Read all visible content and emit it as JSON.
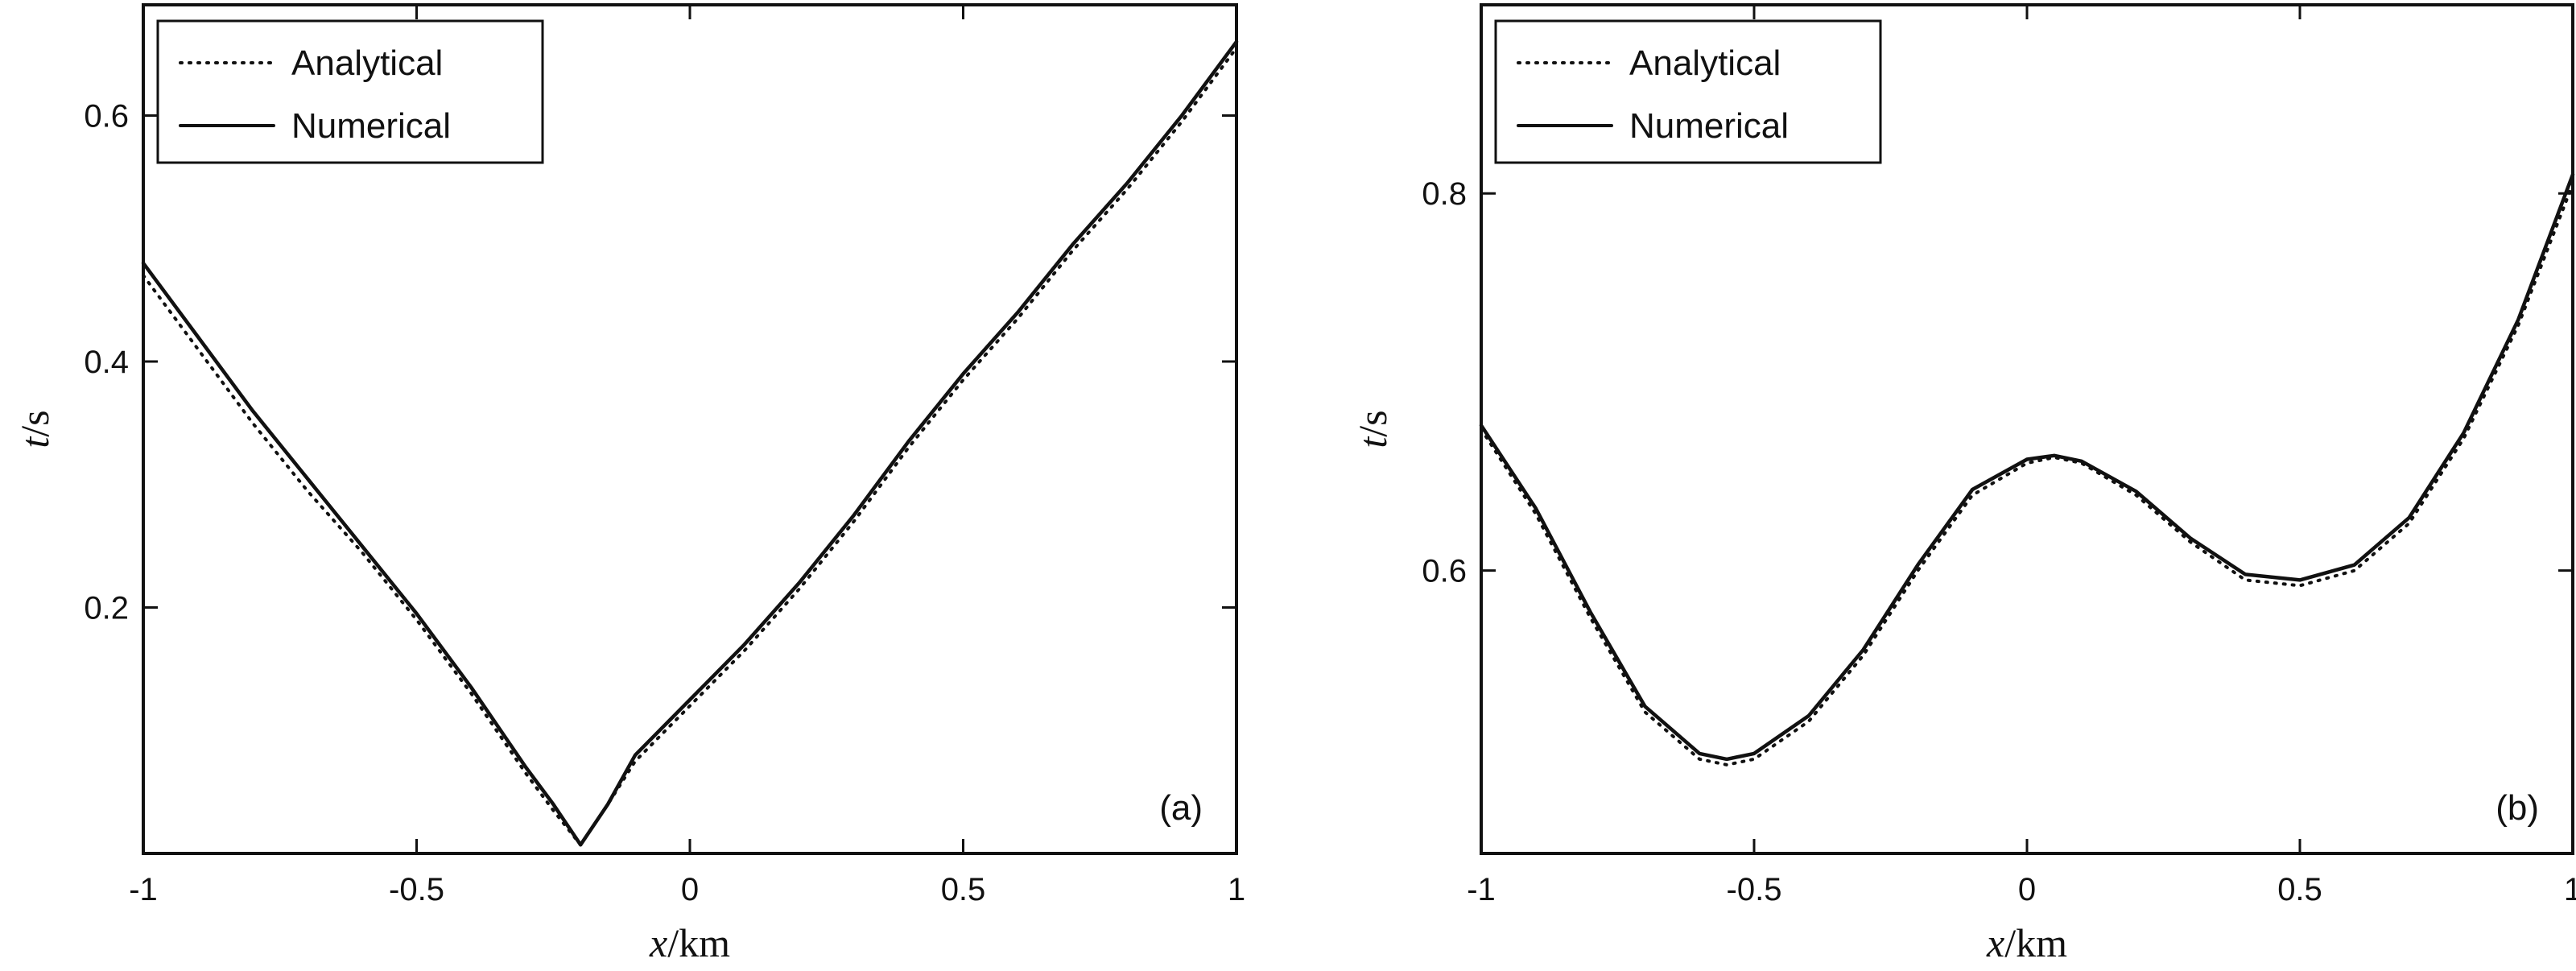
{
  "chart_data": [
    {
      "type": "line",
      "panel_label": "(a)",
      "xlabel_var": "x",
      "xlabel_unit": "/km",
      "ylabel_var": "t",
      "ylabel_unit": "/s",
      "xlim": [
        -1,
        1
      ],
      "ylim": [
        0.0,
        0.69
      ],
      "xticks": [
        -1,
        -0.5,
        0,
        0.5,
        1
      ],
      "xtick_labels": [
        "-1",
        "-0.5",
        "0",
        "0.5",
        "1"
      ],
      "yticks": [
        0.2,
        0.4,
        0.6
      ],
      "ytick_labels": [
        "0.2",
        "0.4",
        "0.6"
      ],
      "grid": false,
      "legend_position": "top-left",
      "series": [
        {
          "name": "Analytical",
          "style": "dotted",
          "x": [
            -1.0,
            -0.9,
            -0.8,
            -0.7,
            -0.6,
            -0.5,
            -0.4,
            -0.3,
            -0.25,
            -0.2,
            -0.15,
            -0.1,
            0.0,
            0.1,
            0.2,
            0.3,
            0.4,
            0.5,
            0.6,
            0.7,
            0.8,
            0.9,
            1.0
          ],
          "values": [
            0.47,
            0.41,
            0.35,
            0.295,
            0.245,
            0.19,
            0.13,
            0.065,
            0.035,
            0.007,
            0.04,
            0.075,
            0.12,
            0.165,
            0.215,
            0.27,
            0.33,
            0.385,
            0.435,
            0.49,
            0.54,
            0.595,
            0.655
          ]
        },
        {
          "name": "Numerical",
          "style": "solid",
          "x": [
            -1.0,
            -0.9,
            -0.8,
            -0.7,
            -0.6,
            -0.5,
            -0.4,
            -0.3,
            -0.25,
            -0.2,
            -0.15,
            -0.1,
            0.0,
            0.1,
            0.2,
            0.3,
            0.4,
            0.5,
            0.6,
            0.7,
            0.8,
            0.9,
            1.0
          ],
          "values": [
            0.48,
            0.42,
            0.36,
            0.305,
            0.25,
            0.195,
            0.135,
            0.07,
            0.04,
            0.007,
            0.04,
            0.08,
            0.125,
            0.17,
            0.22,
            0.275,
            0.335,
            0.39,
            0.44,
            0.495,
            0.545,
            0.6,
            0.66
          ]
        }
      ]
    },
    {
      "type": "line",
      "panel_label": "(b)",
      "xlabel_var": "x",
      "xlabel_unit": "/km",
      "ylabel_var": "t",
      "ylabel_unit": "/s",
      "xlim": [
        -1,
        1
      ],
      "ylim": [
        0.45,
        0.9
      ],
      "xticks": [
        -1,
        -0.5,
        0,
        0.5,
        1
      ],
      "xtick_labels": [
        "-1",
        "-0.5",
        "0",
        "0.5",
        "1"
      ],
      "yticks": [
        0.6,
        0.8
      ],
      "ytick_labels": [
        "0.6",
        "0.8"
      ],
      "grid": false,
      "legend_position": "top-left",
      "series": [
        {
          "name": "Analytical",
          "style": "dotted",
          "x": [
            -1.0,
            -0.9,
            -0.8,
            -0.7,
            -0.6,
            -0.55,
            -0.5,
            -0.4,
            -0.3,
            -0.2,
            -0.1,
            0.0,
            0.05,
            0.1,
            0.2,
            0.3,
            0.4,
            0.5,
            0.6,
            0.7,
            0.8,
            0.9,
            1.0
          ],
          "values": [
            0.675,
            0.63,
            0.575,
            0.525,
            0.5,
            0.497,
            0.5,
            0.52,
            0.555,
            0.6,
            0.64,
            0.657,
            0.66,
            0.657,
            0.64,
            0.615,
            0.595,
            0.592,
            0.6,
            0.625,
            0.67,
            0.73,
            0.805
          ]
        },
        {
          "name": "Numerical",
          "style": "solid",
          "x": [
            -1.0,
            -0.9,
            -0.8,
            -0.7,
            -0.6,
            -0.55,
            -0.5,
            -0.4,
            -0.3,
            -0.2,
            -0.1,
            0.0,
            0.05,
            0.1,
            0.2,
            0.3,
            0.4,
            0.5,
            0.6,
            0.7,
            0.8,
            0.9,
            1.0
          ],
          "values": [
            0.677,
            0.633,
            0.578,
            0.528,
            0.503,
            0.5,
            0.503,
            0.523,
            0.558,
            0.603,
            0.643,
            0.659,
            0.661,
            0.658,
            0.642,
            0.617,
            0.598,
            0.595,
            0.603,
            0.628,
            0.673,
            0.733,
            0.81
          ]
        }
      ]
    }
  ]
}
